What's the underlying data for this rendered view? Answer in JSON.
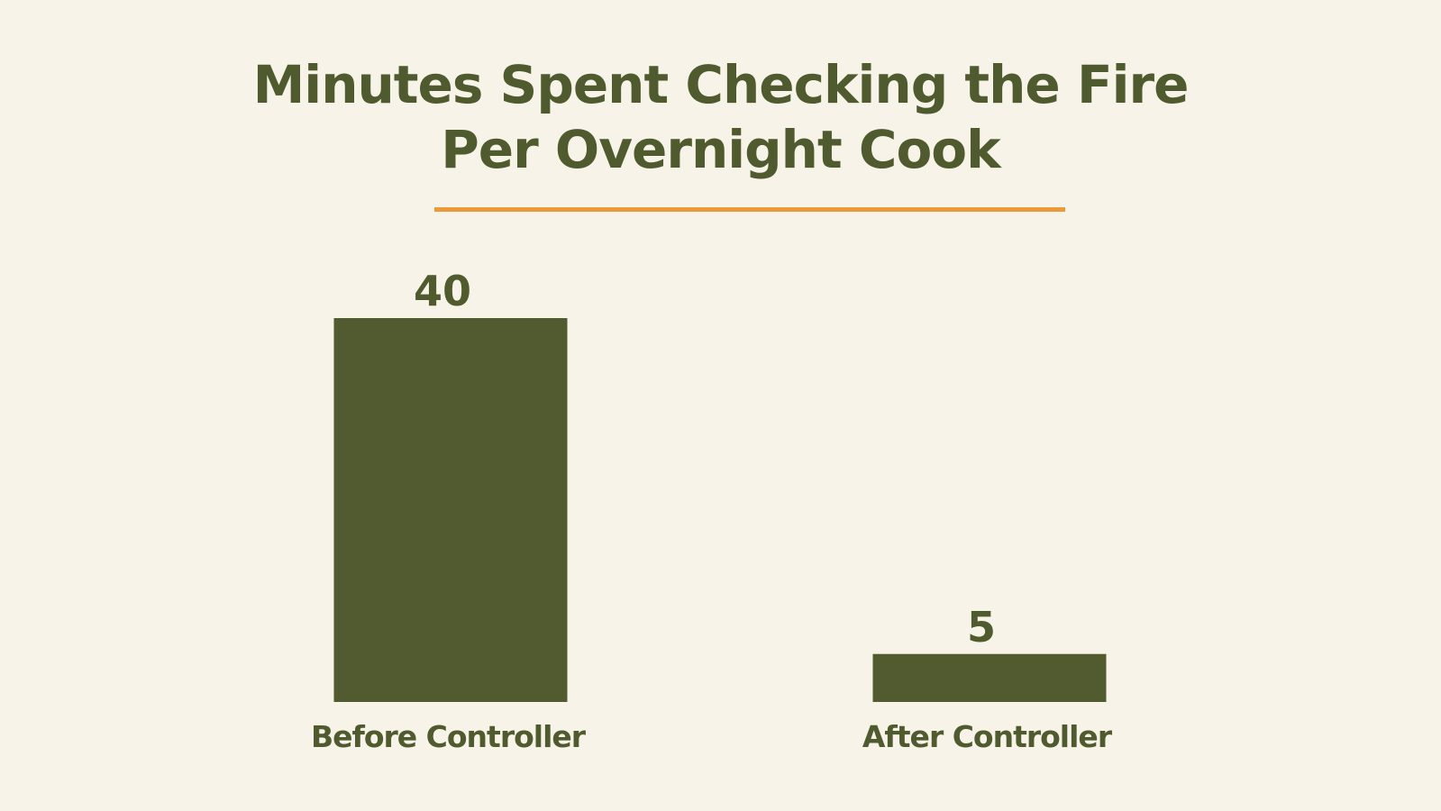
{
  "colors": {
    "background": "#f8f3e8",
    "text": "#4f5a2e",
    "bar": "#525b2f",
    "accent_rule": "#eb9a3a"
  },
  "chart_data": {
    "type": "bar",
    "title_lines": [
      "Minutes Spent Checking the Fire",
      "Per Overnight Cook"
    ],
    "categories": [
      "Before Controller",
      "After Controller"
    ],
    "values": [
      40,
      5
    ],
    "data_labels": [
      "40",
      "5"
    ],
    "xlabel": "",
    "ylabel": "",
    "ylim": [
      0,
      40
    ],
    "grid": false,
    "legend": "none"
  }
}
